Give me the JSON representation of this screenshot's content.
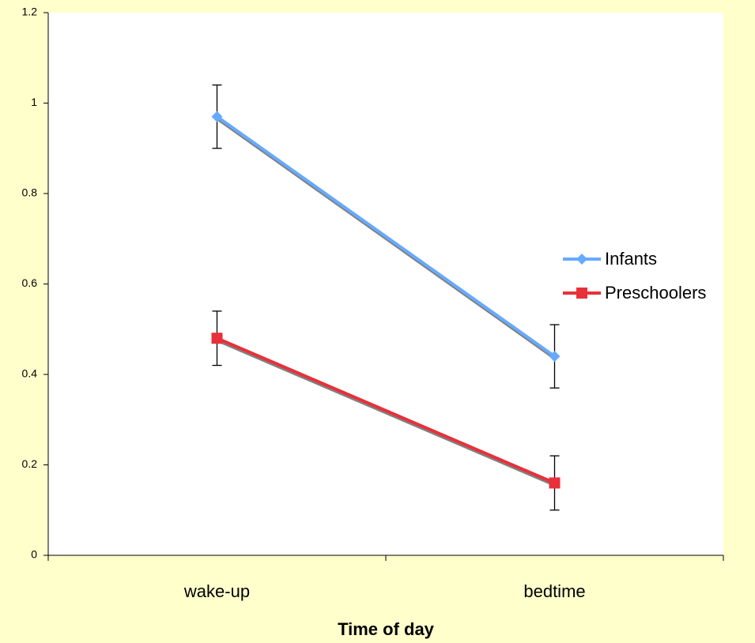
{
  "chart_data": {
    "type": "line",
    "x_label": "Time of day",
    "categories": [
      "wake-up",
      "bedtime"
    ],
    "series": [
      {
        "name": "Infants",
        "color": "#66aaff",
        "marker": "diamond",
        "values": [
          0.97,
          0.44
        ],
        "errors": [
          0.07,
          0.07
        ]
      },
      {
        "name": "Preschoolers",
        "color": "#e8303a",
        "marker": "square",
        "values": [
          0.48,
          0.16
        ],
        "errors": [
          0.06,
          0.06
        ]
      }
    ],
    "ylim": [
      0,
      1.2
    ],
    "yticks": [
      0,
      0.2,
      0.4,
      0.6,
      0.8,
      1,
      1.2
    ],
    "grid": false,
    "legend": "right"
  }
}
